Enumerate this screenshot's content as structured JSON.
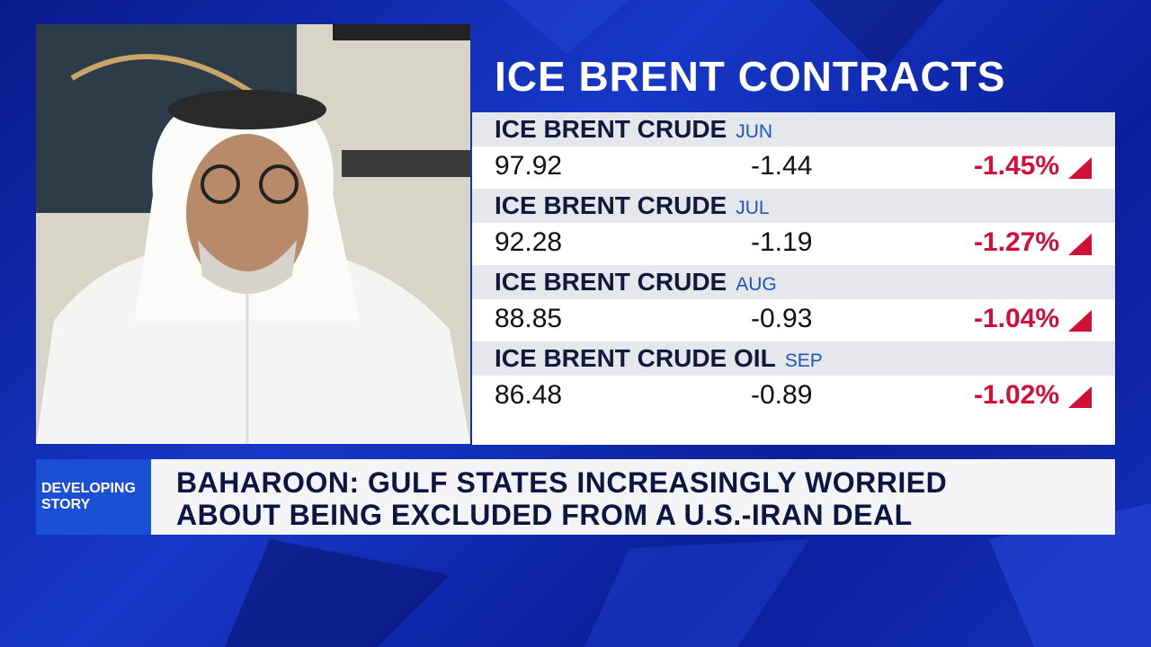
{
  "panel": {
    "title": "ICE BRENT CONTRACTS",
    "rows": [
      {
        "name": "ICE BRENT CRUDE",
        "month": "JUN",
        "price": "97.92",
        "change": "-1.44",
        "percent": "-1.45%"
      },
      {
        "name": "ICE BRENT CRUDE",
        "month": "JUL",
        "price": "92.28",
        "change": "-1.19",
        "percent": "-1.27%"
      },
      {
        "name": "ICE BRENT CRUDE",
        "month": "AUG",
        "price": "88.85",
        "change": "-0.93",
        "percent": "-1.04%"
      },
      {
        "name": "ICE BRENT CRUDE OIL",
        "month": "SEP",
        "price": "86.48",
        "change": "-0.89",
        "percent": "-1.02%"
      }
    ]
  },
  "banner": {
    "tag": [
      "DEVELOPING",
      "STORY"
    ],
    "headline": [
      "BAHAROON: GULF STATES INCREASINGLY WORRIED",
      "ABOUT BEING EXCLUDED FROM A U.S.-IRAN DEAL"
    ]
  }
}
